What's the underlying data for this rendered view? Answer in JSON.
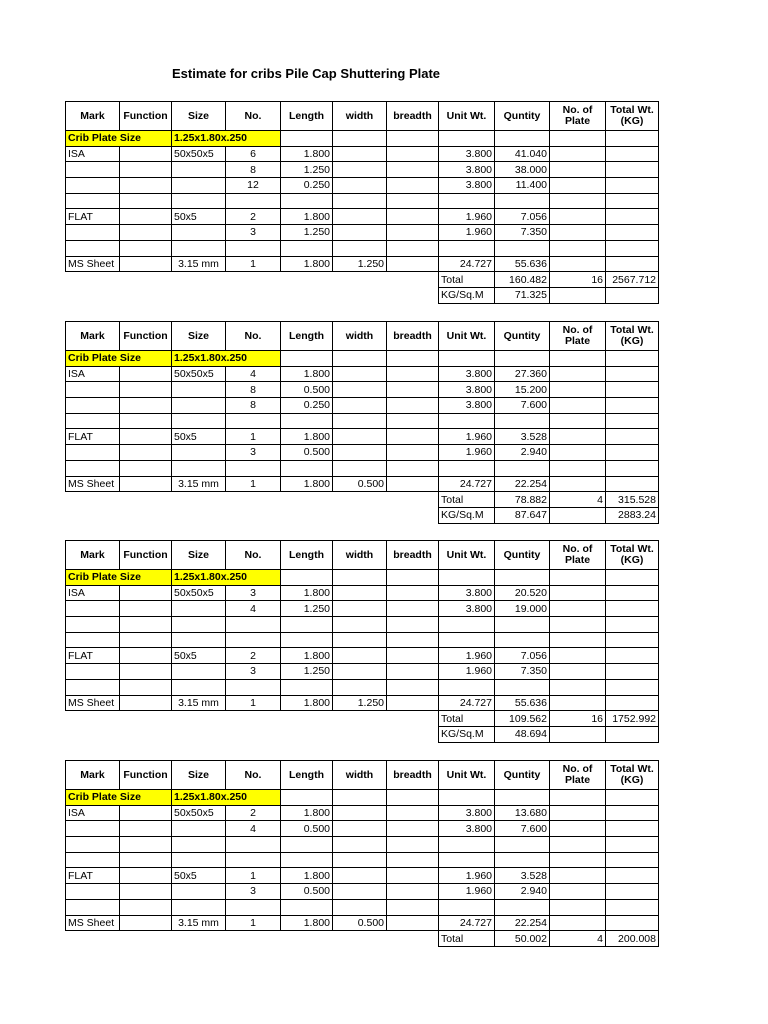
{
  "title": "Estimate for cribs Pile Cap Shuttering Plate",
  "headers": [
    "Mark",
    "Function",
    "Size",
    "No.",
    "Length",
    "width",
    "breadth",
    "Unit Wt.",
    "Quntity",
    "No. of Plate",
    "Total Wt. (KG)"
  ],
  "highlight_color": "#ffff00",
  "tables": [
    {
      "crib": {
        "label": "Crib Plate Size",
        "value": "1.25x1.80x.250"
      },
      "rows": [
        [
          "ISA",
          "",
          "50x50x5",
          "6",
          "1.800",
          "",
          "",
          "3.800",
          "41.040",
          "",
          ""
        ],
        [
          "",
          "",
          "",
          "8",
          "1.250",
          "",
          "",
          "3.800",
          "38.000",
          "",
          ""
        ],
        [
          "",
          "",
          "",
          "12",
          "0.250",
          "",
          "",
          "3.800",
          "11.400",
          "",
          ""
        ],
        [
          "",
          "",
          "",
          "",
          "",
          "",
          "",
          "",
          "",
          "",
          ""
        ],
        [
          "FLAT",
          "",
          "50x5",
          "2",
          "1.800",
          "",
          "",
          "1.960",
          "7.056",
          "",
          ""
        ],
        [
          "",
          "",
          "",
          "3",
          "1.250",
          "",
          "",
          "1.960",
          "7.350",
          "",
          ""
        ],
        [
          "",
          "",
          "",
          "",
          "",
          "",
          "",
          "",
          "",
          "",
          ""
        ],
        [
          "MS Sheet",
          "",
          "3.15 mm",
          "1",
          "1.800",
          "1.250",
          "",
          "24.727",
          "55.636",
          "",
          ""
        ]
      ],
      "footer": [
        [
          "Total",
          "160.482",
          "16",
          "2567.712"
        ],
        [
          "KG/Sq.M",
          "71.325",
          "",
          ""
        ]
      ]
    },
    {
      "crib": {
        "label": "Crib Plate Size",
        "value": "1.25x1.80x.250"
      },
      "rows": [
        [
          "ISA",
          "",
          "50x50x5",
          "4",
          "1.800",
          "",
          "",
          "3.800",
          "27.360",
          "",
          ""
        ],
        [
          "",
          "",
          "",
          "8",
          "0.500",
          "",
          "",
          "3.800",
          "15.200",
          "",
          ""
        ],
        [
          "",
          "",
          "",
          "8",
          "0.250",
          "",
          "",
          "3.800",
          "7.600",
          "",
          ""
        ],
        [
          "",
          "",
          "",
          "",
          "",
          "",
          "",
          "",
          "",
          "",
          ""
        ],
        [
          "FLAT",
          "",
          "50x5",
          "1",
          "1.800",
          "",
          "",
          "1.960",
          "3.528",
          "",
          ""
        ],
        [
          "",
          "",
          "",
          "3",
          "0.500",
          "",
          "",
          "1.960",
          "2.940",
          "",
          ""
        ],
        [
          "",
          "",
          "",
          "",
          "",
          "",
          "",
          "",
          "",
          "",
          ""
        ],
        [
          "MS Sheet",
          "",
          "3.15 mm",
          "1",
          "1.800",
          "0.500",
          "",
          "24.727",
          "22.254",
          "",
          ""
        ]
      ],
      "footer": [
        [
          "Total",
          "78.882",
          "4",
          "315.528"
        ],
        [
          "KG/Sq.M",
          "87.647",
          "",
          "2883.24"
        ]
      ]
    },
    {
      "crib": {
        "label": "Crib Plate Size",
        "value": "1.25x1.80x.250"
      },
      "rows": [
        [
          "ISA",
          "",
          "50x50x5",
          "3",
          "1.800",
          "",
          "",
          "3.800",
          "20.520",
          "",
          ""
        ],
        [
          "",
          "",
          "",
          "4",
          "1.250",
          "",
          "",
          "3.800",
          "19.000",
          "",
          ""
        ],
        [
          "",
          "",
          "",
          "",
          "",
          "",
          "",
          "",
          "",
          "",
          ""
        ],
        [
          "",
          "",
          "",
          "",
          "",
          "",
          "",
          "",
          "",
          "",
          ""
        ],
        [
          "FLAT",
          "",
          "50x5",
          "2",
          "1.800",
          "",
          "",
          "1.960",
          "7.056",
          "",
          ""
        ],
        [
          "",
          "",
          "",
          "3",
          "1.250",
          "",
          "",
          "1.960",
          "7.350",
          "",
          ""
        ],
        [
          "",
          "",
          "",
          "",
          "",
          "",
          "",
          "",
          "",
          "",
          ""
        ],
        [
          "MS Sheet",
          "",
          "3.15 mm",
          "1",
          "1.800",
          "1.250",
          "",
          "24.727",
          "55.636",
          "",
          ""
        ]
      ],
      "footer": [
        [
          "Total",
          "109.562",
          "16",
          "1752.992"
        ],
        [
          "KG/Sq.M",
          "48.694",
          "",
          ""
        ]
      ]
    },
    {
      "crib": {
        "label": "Crib Plate Size",
        "value": "1.25x1.80x.250"
      },
      "rows": [
        [
          "ISA",
          "",
          "50x50x5",
          "2",
          "1.800",
          "",
          "",
          "3.800",
          "13.680",
          "",
          ""
        ],
        [
          "",
          "",
          "",
          "4",
          "0.500",
          "",
          "",
          "3.800",
          "7.600",
          "",
          ""
        ],
        [
          "",
          "",
          "",
          "",
          "",
          "",
          "",
          "",
          "",
          "",
          ""
        ],
        [
          "",
          "",
          "",
          "",
          "",
          "",
          "",
          "",
          "",
          "",
          ""
        ],
        [
          "FLAT",
          "",
          "50x5",
          "1",
          "1.800",
          "",
          "",
          "1.960",
          "3.528",
          "",
          ""
        ],
        [
          "",
          "",
          "",
          "3",
          "0.500",
          "",
          "",
          "1.960",
          "2.940",
          "",
          ""
        ],
        [
          "",
          "",
          "",
          "",
          "",
          "",
          "",
          "",
          "",
          "",
          ""
        ],
        [
          "MS Sheet",
          "",
          "3.15 mm",
          "1",
          "1.800",
          "0.500",
          "",
          "24.727",
          "22.254",
          "",
          ""
        ]
      ],
      "footer": [
        [
          "Total",
          "50.002",
          "4",
          "200.008"
        ]
      ]
    }
  ]
}
